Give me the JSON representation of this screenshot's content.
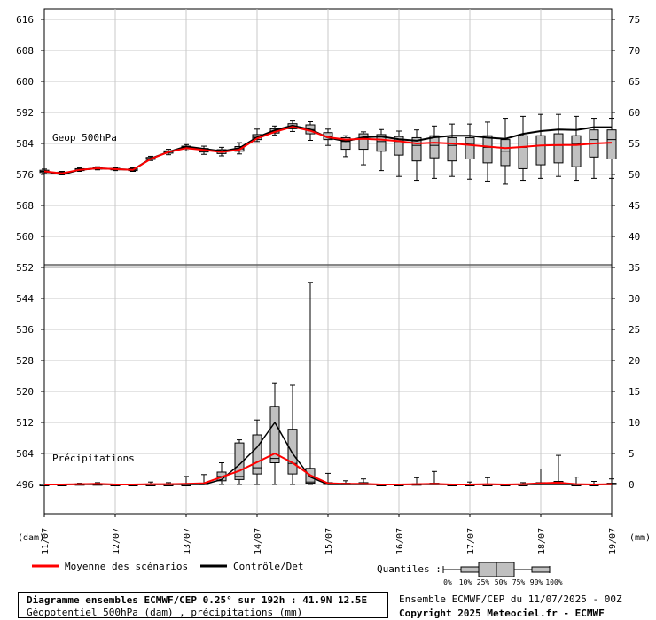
{
  "chart_data": {
    "type": "boxplot",
    "left_axis": {
      "ticks": [
        616,
        608,
        600,
        592,
        584,
        576,
        568,
        560,
        552,
        544,
        536,
        528,
        520,
        512,
        504,
        496
      ],
      "label": "(dam)"
    },
    "right_axis_geop": {
      "ticks": [
        75,
        70,
        65,
        60,
        55,
        50,
        45,
        40,
        35
      ]
    },
    "right_axis_precip": {
      "ticks": [
        30,
        25,
        20,
        15,
        10,
        5,
        0
      ],
      "label": "(mm)"
    },
    "x_labels": [
      "11/07",
      "12/07",
      "13/07",
      "14/07",
      "15/07",
      "16/07",
      "17/07",
      "18/07",
      "19/07"
    ],
    "geop_label": "Geop 500hPa",
    "precip_label": "Précipitations",
    "geop_boxes": [
      {
        "x": 0,
        "min": 576.2,
        "q1": 576.5,
        "med": 576.8,
        "q3": 577.1,
        "max": 577.4
      },
      {
        "x": 6,
        "min": 575.9,
        "q1": 576.1,
        "med": 576.3,
        "q3": 576.6,
        "max": 576.8
      },
      {
        "x": 12,
        "min": 576.8,
        "q1": 577.0,
        "med": 577.2,
        "q3": 577.5,
        "max": 577.7
      },
      {
        "x": 18,
        "min": 577.2,
        "q1": 577.4,
        "med": 577.6,
        "q3": 577.8,
        "max": 578.0
      },
      {
        "x": 24,
        "min": 577.0,
        "q1": 577.2,
        "med": 577.4,
        "q3": 577.6,
        "max": 577.8
      },
      {
        "x": 30,
        "min": 576.8,
        "q1": 577.0,
        "med": 577.2,
        "q3": 577.5,
        "max": 577.7
      },
      {
        "x": 36,
        "min": 579.6,
        "q1": 579.9,
        "med": 580.1,
        "q3": 580.4,
        "max": 580.7
      },
      {
        "x": 42,
        "min": 581.1,
        "q1": 581.5,
        "med": 581.8,
        "q3": 582.1,
        "max": 582.5
      },
      {
        "x": 48,
        "min": 582.1,
        "q1": 582.6,
        "med": 583.0,
        "q3": 583.3,
        "max": 583.7
      },
      {
        "x": 54,
        "min": 581.2,
        "q1": 581.8,
        "med": 582.2,
        "q3": 582.7,
        "max": 583.3
      },
      {
        "x": 60,
        "min": 580.8,
        "q1": 581.4,
        "med": 581.9,
        "q3": 582.4,
        "max": 583.0
      },
      {
        "x": 66,
        "min": 581.3,
        "q1": 582.0,
        "med": 582.6,
        "q3": 583.2,
        "max": 584.2
      },
      {
        "x": 72,
        "min": 584.5,
        "q1": 585.0,
        "med": 585.6,
        "q3": 586.3,
        "max": 587.7
      },
      {
        "x": 78,
        "min": 586.2,
        "q1": 586.7,
        "med": 587.2,
        "q3": 587.8,
        "max": 588.5
      },
      {
        "x": 84,
        "min": 587.1,
        "q1": 587.8,
        "med": 588.4,
        "q3": 589.1,
        "max": 589.8
      },
      {
        "x": 90,
        "min": 584.8,
        "q1": 586.5,
        "med": 587.6,
        "q3": 588.8,
        "max": 589.6
      },
      {
        "x": 96,
        "min": 583.5,
        "q1": 585.0,
        "med": 585.8,
        "q3": 586.8,
        "max": 587.7
      },
      {
        "x": 102,
        "min": 580.6,
        "q1": 582.5,
        "med": 584.5,
        "q3": 585.5,
        "max": 586.0
      },
      {
        "x": 108,
        "min": 578.5,
        "q1": 582.5,
        "med": 585.5,
        "q3": 586.5,
        "max": 587.0
      },
      {
        "x": 114,
        "min": 577.0,
        "q1": 582.0,
        "med": 584.5,
        "q3": 586.3,
        "max": 587.6
      },
      {
        "x": 120,
        "min": 575.5,
        "q1": 581.0,
        "med": 584.5,
        "q3": 585.8,
        "max": 587.2
      },
      {
        "x": 126,
        "min": 574.5,
        "q1": 579.5,
        "med": 583.5,
        "q3": 585.5,
        "max": 587.5
      },
      {
        "x": 132,
        "min": 575.0,
        "q1": 580.3,
        "med": 583.5,
        "q3": 586.0,
        "max": 588.5
      },
      {
        "x": 138,
        "min": 575.5,
        "q1": 579.5,
        "med": 583.5,
        "q3": 585.5,
        "max": 589.0
      },
      {
        "x": 144,
        "min": 574.8,
        "q1": 580.0,
        "med": 584.0,
        "q3": 585.5,
        "max": 589.0
      },
      {
        "x": 150,
        "min": 574.3,
        "q1": 579.0,
        "med": 583.0,
        "q3": 586.0,
        "max": 589.5
      },
      {
        "x": 156,
        "min": 573.5,
        "q1": 578.3,
        "med": 582.0,
        "q3": 585.0,
        "max": 590.5
      },
      {
        "x": 162,
        "min": 574.5,
        "q1": 577.5,
        "med": 583.0,
        "q3": 586.0,
        "max": 591.0
      },
      {
        "x": 168,
        "min": 575.0,
        "q1": 578.5,
        "med": 583.5,
        "q3": 586.0,
        "max": 591.5
      },
      {
        "x": 174,
        "min": 575.5,
        "q1": 579.0,
        "med": 583.5,
        "q3": 586.5,
        "max": 591.5
      },
      {
        "x": 180,
        "min": 574.5,
        "q1": 578.0,
        "med": 584.0,
        "q3": 586.0,
        "max": 591.0
      },
      {
        "x": 186,
        "min": 575.0,
        "q1": 580.5,
        "med": 585.0,
        "q3": 587.5,
        "max": 590.5
      },
      {
        "x": 192,
        "min": 575.0,
        "q1": 580.0,
        "med": 585.0,
        "q3": 587.5,
        "max": 590.5
      }
    ],
    "geop_mean": [
      [
        0,
        576.8
      ],
      [
        6,
        576.3
      ],
      [
        12,
        577.2
      ],
      [
        18,
        577.6
      ],
      [
        24,
        577.4
      ],
      [
        30,
        577.2
      ],
      [
        36,
        580.0
      ],
      [
        42,
        581.8
      ],
      [
        48,
        582.8
      ],
      [
        54,
        582.3
      ],
      [
        60,
        581.8
      ],
      [
        66,
        582.4
      ],
      [
        72,
        585.3
      ],
      [
        78,
        587.0
      ],
      [
        84,
        588.3
      ],
      [
        90,
        587.3
      ],
      [
        96,
        585.6
      ],
      [
        102,
        585.0
      ],
      [
        108,
        585.2
      ],
      [
        114,
        585.0
      ],
      [
        120,
        584.6
      ],
      [
        126,
        584.0
      ],
      [
        132,
        584.2
      ],
      [
        138,
        584.0
      ],
      [
        144,
        583.6
      ],
      [
        150,
        583.2
      ],
      [
        156,
        582.8
      ],
      [
        162,
        583.1
      ],
      [
        168,
        583.5
      ],
      [
        174,
        583.6
      ],
      [
        180,
        583.6
      ],
      [
        186,
        584.0
      ],
      [
        192,
        584.2
      ]
    ],
    "geop_control": [
      [
        0,
        576.8
      ],
      [
        6,
        576.0
      ],
      [
        12,
        577.2
      ],
      [
        18,
        577.6
      ],
      [
        24,
        577.4
      ],
      [
        30,
        577.2
      ],
      [
        36,
        580.1
      ],
      [
        42,
        581.8
      ],
      [
        48,
        583.2
      ],
      [
        54,
        582.6
      ],
      [
        60,
        582.0
      ],
      [
        66,
        582.8
      ],
      [
        72,
        585.6
      ],
      [
        78,
        587.4
      ],
      [
        84,
        588.6
      ],
      [
        90,
        587.6
      ],
      [
        96,
        585.5
      ],
      [
        102,
        584.6
      ],
      [
        108,
        585.6
      ],
      [
        114,
        585.8
      ],
      [
        120,
        585.1
      ],
      [
        126,
        584.7
      ],
      [
        132,
        585.6
      ],
      [
        138,
        586.0
      ],
      [
        144,
        586.0
      ],
      [
        150,
        585.5
      ],
      [
        156,
        585.2
      ],
      [
        162,
        586.5
      ],
      [
        168,
        587.2
      ],
      [
        174,
        587.6
      ],
      [
        180,
        587.5
      ],
      [
        186,
        588.2
      ],
      [
        192,
        588.2
      ]
    ],
    "precip_boxes": [
      {
        "x": 0,
        "min": 0,
        "q1": 0,
        "med": 0,
        "q3": 0,
        "max": 0
      },
      {
        "x": 6,
        "min": 0,
        "q1": 0,
        "med": 0,
        "q3": 0,
        "max": 0
      },
      {
        "x": 12,
        "min": 0,
        "q1": 0,
        "med": 0,
        "q3": 0.1,
        "max": 0.2
      },
      {
        "x": 18,
        "min": 0,
        "q1": 0,
        "med": 0,
        "q3": 0.1,
        "max": 0.3
      },
      {
        "x": 24,
        "min": 0,
        "q1": 0,
        "med": 0,
        "q3": 0,
        "max": 0
      },
      {
        "x": 30,
        "min": 0,
        "q1": 0,
        "med": 0,
        "q3": 0,
        "max": 0
      },
      {
        "x": 36,
        "min": 0,
        "q1": 0,
        "med": 0,
        "q3": 0,
        "max": 0.4
      },
      {
        "x": 42,
        "min": 0,
        "q1": 0,
        "med": 0,
        "q3": 0,
        "max": 0.3
      },
      {
        "x": 48,
        "min": 0,
        "q1": 0,
        "med": 0,
        "q3": 0,
        "max": 1.3
      },
      {
        "x": 54,
        "min": 0,
        "q1": 0,
        "med": 0,
        "q3": 0.2,
        "max": 1.6
      },
      {
        "x": 60,
        "min": 0,
        "q1": 0.6,
        "med": 1.3,
        "q3": 2.0,
        "max": 3.5
      },
      {
        "x": 66,
        "min": 0,
        "q1": 0.8,
        "med": 1.3,
        "q3": 6.7,
        "max": 7.2
      },
      {
        "x": 72,
        "min": 0,
        "q1": 1.7,
        "med": 2.7,
        "q3": 8.0,
        "max": 10.4
      },
      {
        "x": 78,
        "min": 0,
        "q1": 3.5,
        "med": 4.2,
        "q3": 12.6,
        "max": 16.4
      },
      {
        "x": 84,
        "min": 0,
        "q1": 1.7,
        "med": 3.4,
        "q3": 8.9,
        "max": 16.0
      },
      {
        "x": 90,
        "min": 0,
        "q1": 0.2,
        "med": 0.4,
        "q3": 2.6,
        "max": 32.6
      },
      {
        "x": 96,
        "min": 0,
        "q1": 0,
        "med": 0,
        "q3": 0.3,
        "max": 1.8
      },
      {
        "x": 102,
        "min": 0,
        "q1": 0,
        "med": 0,
        "q3": 0.2,
        "max": 0.6
      },
      {
        "x": 108,
        "min": 0,
        "q1": 0,
        "med": 0,
        "q3": 0.3,
        "max": 0.9
      },
      {
        "x": 114,
        "min": 0,
        "q1": 0,
        "med": 0,
        "q3": 0,
        "max": 0
      },
      {
        "x": 120,
        "min": 0,
        "q1": 0,
        "med": 0,
        "q3": 0,
        "max": 0
      },
      {
        "x": 126,
        "min": 0,
        "q1": 0,
        "med": 0,
        "q3": 0.1,
        "max": 1.1
      },
      {
        "x": 132,
        "min": 0,
        "q1": 0,
        "med": 0,
        "q3": 0.2,
        "max": 2.1
      },
      {
        "x": 138,
        "min": 0,
        "q1": 0,
        "med": 0,
        "q3": 0,
        "max": 0
      },
      {
        "x": 144,
        "min": 0,
        "q1": 0,
        "med": 0,
        "q3": 0,
        "max": 0.4
      },
      {
        "x": 150,
        "min": 0,
        "q1": 0,
        "med": 0,
        "q3": 0,
        "max": 1.1
      },
      {
        "x": 156,
        "min": 0,
        "q1": 0,
        "med": 0,
        "q3": 0,
        "max": 0
      },
      {
        "x": 162,
        "min": 0,
        "q1": 0,
        "med": 0,
        "q3": 0,
        "max": 0.3
      },
      {
        "x": 168,
        "min": 0,
        "q1": 0,
        "med": 0,
        "q3": 0.3,
        "max": 2.5
      },
      {
        "x": 174,
        "min": 0,
        "q1": 0,
        "med": 0,
        "q3": 0.5,
        "max": 4.7
      },
      {
        "x": 180,
        "min": 0,
        "q1": 0,
        "med": 0,
        "q3": 0,
        "max": 1.2
      },
      {
        "x": 186,
        "min": 0,
        "q1": 0,
        "med": 0,
        "q3": 0,
        "max": 0.5
      },
      {
        "x": 192,
        "min": 0,
        "q1": 0,
        "med": 0,
        "q3": 0.2,
        "max": 0.9
      }
    ],
    "precip_mean": [
      [
        0,
        0
      ],
      [
        6,
        0
      ],
      [
        12,
        0.05
      ],
      [
        18,
        0.1
      ],
      [
        24,
        0
      ],
      [
        30,
        0
      ],
      [
        36,
        0.05
      ],
      [
        42,
        0.05
      ],
      [
        48,
        0.1
      ],
      [
        54,
        0.2
      ],
      [
        60,
        1.2
      ],
      [
        66,
        2.2
      ],
      [
        72,
        3.6
      ],
      [
        78,
        5.0
      ],
      [
        84,
        3.5
      ],
      [
        90,
        1.5
      ],
      [
        96,
        0.2
      ],
      [
        102,
        0.1
      ],
      [
        108,
        0.1
      ],
      [
        114,
        0
      ],
      [
        120,
        0
      ],
      [
        126,
        0.05
      ],
      [
        132,
        0.1
      ],
      [
        138,
        0
      ],
      [
        144,
        0
      ],
      [
        150,
        0.05
      ],
      [
        156,
        0
      ],
      [
        162,
        0.05
      ],
      [
        168,
        0.2
      ],
      [
        174,
        0.3
      ],
      [
        180,
        0.05
      ],
      [
        186,
        0
      ],
      [
        192,
        0.05
      ]
    ],
    "precip_control": [
      [
        0,
        0
      ],
      [
        6,
        0
      ],
      [
        12,
        0
      ],
      [
        18,
        0
      ],
      [
        24,
        0
      ],
      [
        30,
        0
      ],
      [
        36,
        0
      ],
      [
        42,
        0
      ],
      [
        48,
        0
      ],
      [
        54,
        0
      ],
      [
        60,
        0.8
      ],
      [
        66,
        3.2
      ],
      [
        72,
        6.0
      ],
      [
        78,
        10.0
      ],
      [
        84,
        5.0
      ],
      [
        90,
        1.2
      ],
      [
        96,
        0
      ],
      [
        102,
        0
      ],
      [
        108,
        0
      ],
      [
        114,
        0
      ],
      [
        120,
        0
      ],
      [
        126,
        0
      ],
      [
        132,
        0
      ],
      [
        138,
        0
      ],
      [
        144,
        0
      ],
      [
        150,
        0
      ],
      [
        156,
        0
      ],
      [
        162,
        0
      ],
      [
        168,
        0
      ],
      [
        174,
        0
      ],
      [
        180,
        0
      ],
      [
        186,
        0
      ],
      [
        192,
        0
      ]
    ]
  },
  "legend": {
    "mean_label": "Moyenne des scénarios",
    "control_label": "Contrôle/Det",
    "quantiles_label": "Quantiles :",
    "quantile_ticks": [
      "0%",
      "10%",
      "25%",
      "50%",
      "75%",
      "90%",
      "100%"
    ],
    "mean_color": "#ff0000",
    "control_color": "#000000",
    "box_color": "#c0c0c0"
  },
  "footer": {
    "title_line1": "Diagramme ensembles ECMWF/CEP 0.25° sur 192h : 41.9N 12.5E",
    "title_line2": "Géopotentiel 500hPa (dam) , précipitations (mm)",
    "run_info": "Ensemble ECMWF/CEP du 11/07/2025 - 00Z",
    "copyright": "Copyright 2025 Meteociel.fr - ECMWF"
  }
}
